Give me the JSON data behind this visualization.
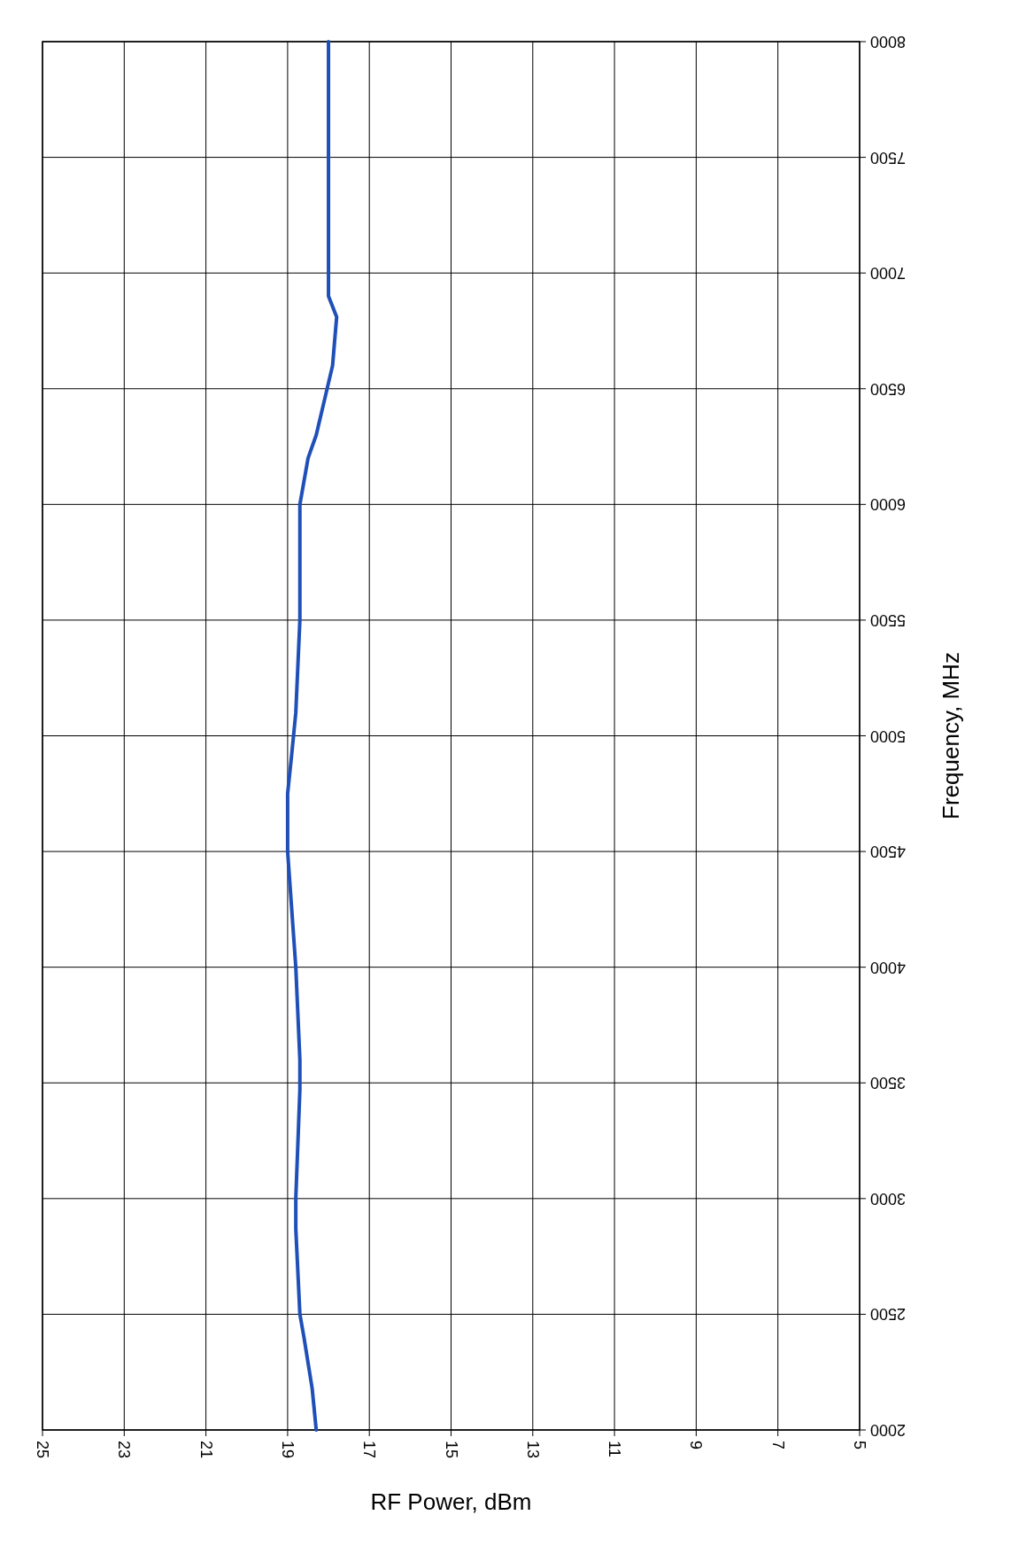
{
  "chart_data": {
    "type": "line",
    "xlabel": "RF Power, dBm",
    "ylabel": "Frequency, MHz",
    "xlim": [
      25,
      5
    ],
    "ylim": [
      2000,
      8000
    ],
    "xticks": [
      25,
      23,
      21,
      19,
      17,
      15,
      13,
      11,
      9,
      7,
      5
    ],
    "yticks": [
      2000,
      2500,
      3000,
      3500,
      4000,
      4500,
      5000,
      5500,
      6000,
      6500,
      7000,
      7500,
      8000
    ],
    "grid": true,
    "series": [
      {
        "color": "#1f4fb8",
        "x": [
          18.3,
          18.4,
          18.6,
          18.7,
          18.8,
          18.8,
          18.7,
          18.7,
          18.8,
          19.0,
          19.0,
          18.9,
          18.8,
          18.7,
          18.7,
          18.5,
          18.3,
          17.9,
          17.8,
          18.0,
          18.0,
          18.0,
          18.0
        ],
        "values": [
          2000,
          2180,
          2400,
          2500,
          2870,
          3000,
          3470,
          3600,
          4000,
          4500,
          4750,
          4920,
          5100,
          5500,
          6000,
          6200,
          6300,
          6600,
          6810,
          6900,
          7320,
          7620,
          8000
        ]
      }
    ]
  }
}
